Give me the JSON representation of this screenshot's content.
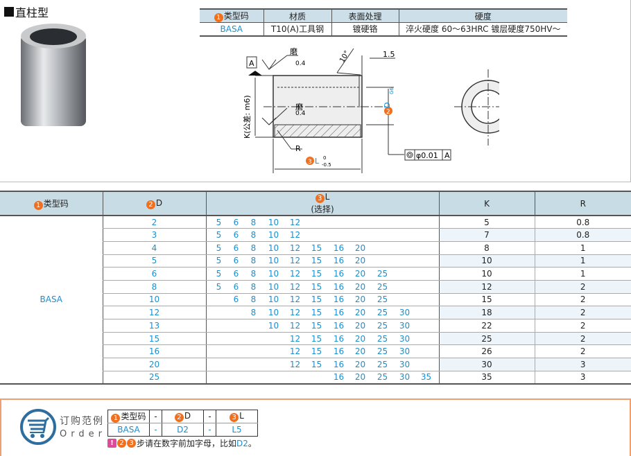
{
  "title": "直柱型",
  "spec": {
    "headers": [
      "类型码",
      "材质",
      "表面处理",
      "硬度"
    ],
    "row": [
      "BASA",
      "T10(A)工具钢",
      "镀硬铬",
      "淬火硬度 60～63HRC 镀层硬度750HV～"
    ]
  },
  "drawing": {
    "datum": "A",
    "grind1": "磨",
    "grind2": "磨",
    "rough1": "0.4",
    "rough2": "0.4",
    "angle": "10°",
    "chamfer": "1.5",
    "k_label": "K(公差: m6)",
    "r_label": "R",
    "d_label": "D",
    "d_tol": "G6",
    "l_label": "L",
    "l_tol_upper": "0",
    "l_tol_lower": "-0.5",
    "gdt_tol": "φ0.01",
    "gdt_datum": "A"
  },
  "table": {
    "headers": {
      "model": "类型码",
      "d": "D",
      "l": "L",
      "l_sub": "(选择)",
      "k": "K",
      "r": "R"
    },
    "model": "BASA",
    "l_columns": [
      "5",
      "6",
      "8",
      "10",
      "12",
      "15",
      "16",
      "20",
      "25",
      "30",
      "35"
    ],
    "rows": [
      {
        "d": "2",
        "l": [
          "5",
          "6",
          "8",
          "10",
          "12"
        ],
        "k": "5",
        "r": "0.8"
      },
      {
        "d": "3",
        "l": [
          "5",
          "6",
          "8",
          "10",
          "12"
        ],
        "k": "7",
        "r": "0.8"
      },
      {
        "d": "4",
        "l": [
          "5",
          "6",
          "8",
          "10",
          "12",
          "15",
          "16",
          "20"
        ],
        "k": "8",
        "r": "1"
      },
      {
        "d": "5",
        "l": [
          "5",
          "6",
          "8",
          "10",
          "12",
          "15",
          "16",
          "20"
        ],
        "k": "10",
        "r": "1"
      },
      {
        "d": "6",
        "l": [
          "5",
          "6",
          "8",
          "10",
          "12",
          "15",
          "16",
          "20",
          "25"
        ],
        "k": "10",
        "r": "1"
      },
      {
        "d": "8",
        "l": [
          "5",
          "6",
          "8",
          "10",
          "12",
          "15",
          "16",
          "20",
          "25"
        ],
        "k": "12",
        "r": "2"
      },
      {
        "d": "10",
        "l": [
          "6",
          "8",
          "10",
          "12",
          "15",
          "16",
          "20",
          "25"
        ],
        "k": "15",
        "r": "2"
      },
      {
        "d": "12",
        "l": [
          "8",
          "10",
          "12",
          "15",
          "16",
          "20",
          "25",
          "30"
        ],
        "k": "18",
        "r": "2"
      },
      {
        "d": "13",
        "l": [
          "10",
          "12",
          "15",
          "16",
          "20",
          "25",
          "30"
        ],
        "k": "22",
        "r": "2"
      },
      {
        "d": "15",
        "l": [
          "12",
          "15",
          "16",
          "20",
          "25",
          "30"
        ],
        "k": "25",
        "r": "2"
      },
      {
        "d": "16",
        "l": [
          "12",
          "15",
          "16",
          "20",
          "25",
          "30"
        ],
        "k": "26",
        "r": "2"
      },
      {
        "d": "20",
        "l": [
          "12",
          "15",
          "16",
          "20",
          "25",
          "30"
        ],
        "k": "30",
        "r": "3"
      },
      {
        "d": "25",
        "l": [
          "16",
          "20",
          "25",
          "30",
          "35"
        ],
        "k": "35",
        "r": "3"
      }
    ]
  },
  "order": {
    "title_cn": "订购范例",
    "title_en": "Order",
    "headers": [
      "类型码",
      "-",
      "D",
      "-",
      "L"
    ],
    "values": [
      "BASA",
      "-",
      "D2",
      "-",
      "L5"
    ],
    "note": "步请在数字前加字母，比如",
    "note_example": "D2",
    "note_end": "。"
  },
  "colors": {
    "accent": "#1a8fd0",
    "badge": "#f07020",
    "header_bg": "#c8dce6",
    "order_border": "#f0a070"
  },
  "icons": [
    "cart-icon",
    "warning-icon"
  ]
}
